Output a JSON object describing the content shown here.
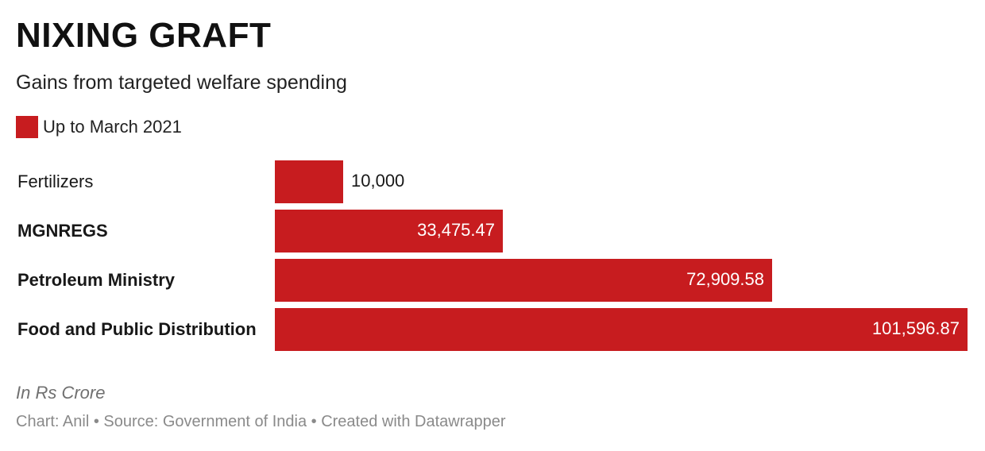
{
  "header": {
    "title": "NIXING GRAFT",
    "subtitle": "Gains from targeted welfare spending"
  },
  "legend": {
    "label": "Up to March 2021",
    "color": "#c71c1f"
  },
  "chart_data": {
    "type": "bar",
    "orientation": "horizontal",
    "title": "NIXING GRAFT",
    "subtitle": "Gains from targeted welfare spending",
    "categories": [
      "Fertilizers",
      "MGNREGS",
      "Petroleum Ministry",
      "Food and Public Distribution"
    ],
    "values": [
      10000,
      33475.47,
      72909.58,
      101596.87
    ],
    "value_labels": [
      "10,000",
      "33,475.47",
      "72,909.58",
      "101,596.87"
    ],
    "bold_categories": [
      false,
      true,
      true,
      true
    ],
    "series": [
      {
        "name": "Up to March 2021",
        "values": [
          10000,
          33475.47,
          72909.58,
          101596.87
        ]
      }
    ],
    "xlim": [
      0,
      101596.87
    ],
    "grid": false,
    "legend_position": "top-left",
    "bar_color": "#c71c1f",
    "units_note": "In Rs Crore"
  },
  "footer": {
    "notes": "In Rs Crore",
    "credit": "Chart: Anil • Source: Government of India • Created with Datawrapper"
  }
}
